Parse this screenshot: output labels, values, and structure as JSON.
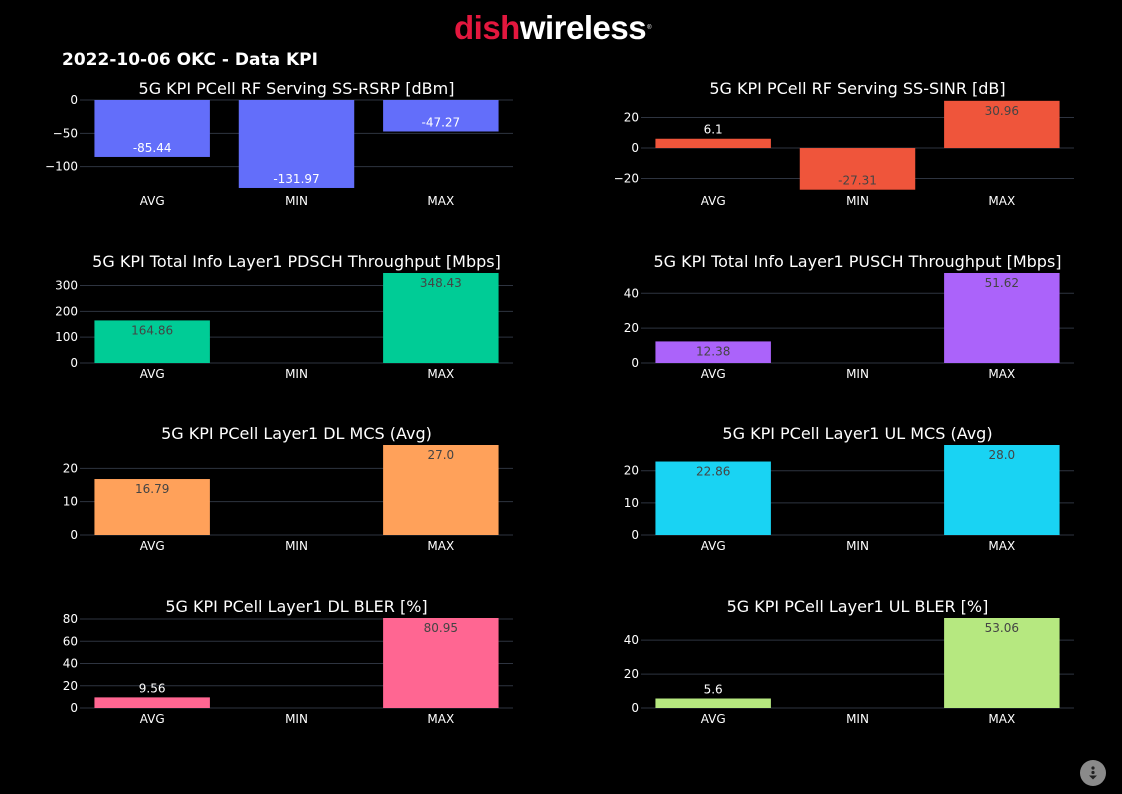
{
  "header": {
    "logo_brand": "dish",
    "logo_product": "wireless",
    "logo_mark": "®",
    "report_title": "2022-10-06 OKC - Data KPI"
  },
  "scroll_button_icon": "scroll-down-icon",
  "chart_data": [
    {
      "type": "bar",
      "title": "5G KPI PCell RF Serving SS-RSRP [dBm]",
      "categories": [
        "AVG",
        "MIN",
        "MAX"
      ],
      "values": [
        -85.44,
        -131.97,
        -47.27
      ],
      "labels": [
        "-85.44",
        "-131.97",
        "-47.27"
      ],
      "ylim": [
        -135,
        0
      ],
      "yticks": [
        0,
        -50,
        -100
      ],
      "ytick_labels": [
        "0",
        "−50",
        "−100"
      ],
      "color": "#636efa",
      "label_color": "#ffffff"
    },
    {
      "type": "bar",
      "title": "5G KPI PCell RF Serving SS-SINR [dB]",
      "categories": [
        "AVG",
        "MIN",
        "MAX"
      ],
      "values": [
        6.1,
        -27.31,
        30.96
      ],
      "labels": [
        "6.1",
        "-27.31",
        "30.96"
      ],
      "ylim": [
        -27.5,
        31.5
      ],
      "yticks": [
        20,
        0,
        -20
      ],
      "ytick_labels": [
        "20",
        "0",
        "−20"
      ],
      "color": "#ef553b",
      "label_color": "#444444"
    },
    {
      "type": "bar",
      "title": "5G KPI Total Info Layer1 PDSCH Throughput [Mbps]",
      "categories": [
        "AVG",
        "MIN",
        "MAX"
      ],
      "values": [
        164.86,
        0,
        348.43
      ],
      "labels": [
        "164.86",
        "",
        "348.43"
      ],
      "ylim": [
        0,
        348.43
      ],
      "yticks": [
        300,
        200,
        100,
        0
      ],
      "ytick_labels": [
        "300",
        "200",
        "100",
        "0"
      ],
      "color": "#00cc96",
      "label_color": "#444444"
    },
    {
      "type": "bar",
      "title": "5G KPI Total Info Layer1 PUSCH Throughput [Mbps]",
      "categories": [
        "AVG",
        "MIN",
        "MAX"
      ],
      "values": [
        12.38,
        0,
        51.62
      ],
      "labels": [
        "12.38",
        "",
        "51.62"
      ],
      "ylim": [
        0,
        51.62
      ],
      "yticks": [
        40,
        20,
        0
      ],
      "ytick_labels": [
        "40",
        "20",
        "0"
      ],
      "color": "#ab63fa",
      "label_color": "#444444"
    },
    {
      "type": "bar",
      "title": "5G KPI PCell Layer1 DL MCS (Avg)",
      "categories": [
        "AVG",
        "MIN",
        "MAX"
      ],
      "values": [
        16.79,
        0,
        27.0
      ],
      "labels": [
        "16.79",
        "",
        "27.0"
      ],
      "ylim": [
        0,
        27.0
      ],
      "yticks": [
        20,
        10,
        0
      ],
      "ytick_labels": [
        "20",
        "10",
        "0"
      ],
      "color": "#ffa15a",
      "label_color": "#444444"
    },
    {
      "type": "bar",
      "title": "5G KPI PCell Layer1 UL MCS (Avg)",
      "categories": [
        "AVG",
        "MIN",
        "MAX"
      ],
      "values": [
        22.86,
        0,
        28.0
      ],
      "labels": [
        "22.86",
        "",
        "28.0"
      ],
      "ylim": [
        0,
        28.0
      ],
      "yticks": [
        20,
        10,
        0
      ],
      "ytick_labels": [
        "20",
        "10",
        "0"
      ],
      "color": "#19d3f3",
      "label_color": "#444444"
    },
    {
      "type": "bar",
      "title": "5G KPI PCell Layer1 DL BLER [%]",
      "categories": [
        "AVG",
        "MIN",
        "MAX"
      ],
      "values": [
        9.56,
        0,
        80.95
      ],
      "labels": [
        "9.56",
        "",
        "80.95"
      ],
      "ylim": [
        0,
        80.95
      ],
      "yticks": [
        80,
        60,
        40,
        20,
        0
      ],
      "ytick_labels": [
        "80",
        "60",
        "40",
        "20",
        "0"
      ],
      "color": "#ff6692",
      "label_color": "#444444"
    },
    {
      "type": "bar",
      "title": "5G KPI PCell Layer1 UL BLER [%]",
      "categories": [
        "AVG",
        "MIN",
        "MAX"
      ],
      "values": [
        5.6,
        0,
        53.06
      ],
      "labels": [
        "5.6",
        "",
        "53.06"
      ],
      "ylim": [
        0,
        53.06
      ],
      "yticks": [
        40,
        20,
        0
      ],
      "ytick_labels": [
        "40",
        "20",
        "0"
      ],
      "color": "#b6e880",
      "label_color": "#444444"
    }
  ]
}
